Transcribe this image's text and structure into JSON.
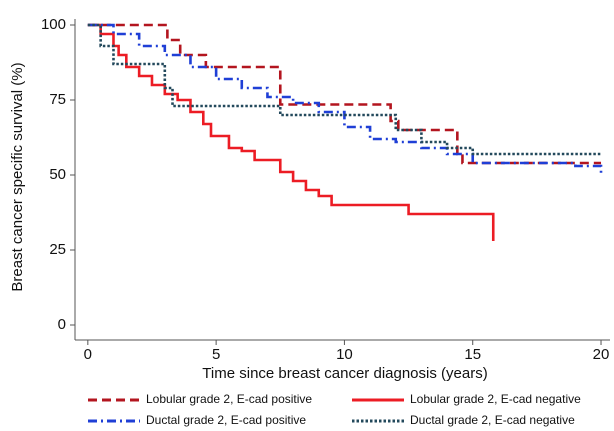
{
  "chart_data": {
    "type": "step",
    "x_label": "Time since breast cancer diagnosis (years)",
    "y_label": "Breast cancer specific survival (%)",
    "xlim": [
      -0.5,
      20.35
    ],
    "ylim": [
      -5,
      102
    ],
    "xticks": [
      0,
      5,
      10,
      15,
      20
    ],
    "yticks": [
      0,
      25,
      50,
      75,
      100
    ],
    "grid": false,
    "legend": "bottom",
    "series": [
      {
        "name": "Lobular grade 2, E-cad positive",
        "color": "#b3151f",
        "style": "dashed",
        "x": [
          0,
          3.1,
          3.6,
          4.6,
          7.5,
          11.8,
          12.1,
          14.4,
          14.6,
          20
        ],
        "values": [
          100,
          95,
          90,
          86,
          73.5,
          68,
          65,
          57,
          54,
          54
        ]
      },
      {
        "name": "Lobular grade 2, E-cad negative",
        "color": "#ec1c24",
        "style": "solid",
        "x": [
          0,
          0.5,
          1,
          1.2,
          1.5,
          2,
          2.5,
          3,
          3.5,
          4,
          4.5,
          4.8,
          5.5,
          6,
          6.5,
          7.5,
          8,
          8.5,
          9,
          9.5,
          12.5,
          15.8
        ],
        "values": [
          100,
          97,
          93,
          90,
          86,
          83,
          80,
          77,
          75,
          71,
          67,
          63,
          59,
          58,
          55,
          51,
          48,
          45,
          43,
          40,
          37,
          28
        ]
      },
      {
        "name": "Ductal grade 2, E-cad positive",
        "color": "#1f3fd6",
        "style": "dashdot",
        "x": [
          0,
          1,
          2,
          3,
          4,
          5,
          6,
          7,
          8,
          9,
          10,
          11,
          12,
          13,
          14,
          15,
          19,
          20
        ],
        "values": [
          100,
          97,
          93,
          90,
          86,
          82,
          79,
          76,
          74,
          71,
          66,
          62,
          61,
          59,
          57,
          54,
          53,
          50
        ]
      },
      {
        "name": "Ductal grade 2, E-cad negative",
        "color": "#23495c",
        "style": "dotted",
        "x": [
          0,
          0.5,
          1,
          2,
          3,
          3.3,
          7.5,
          12,
          13,
          14,
          15,
          20
        ],
        "values": [
          100,
          93,
          87,
          87,
          79,
          73,
          70,
          65,
          61,
          59,
          57,
          57
        ]
      }
    ]
  }
}
